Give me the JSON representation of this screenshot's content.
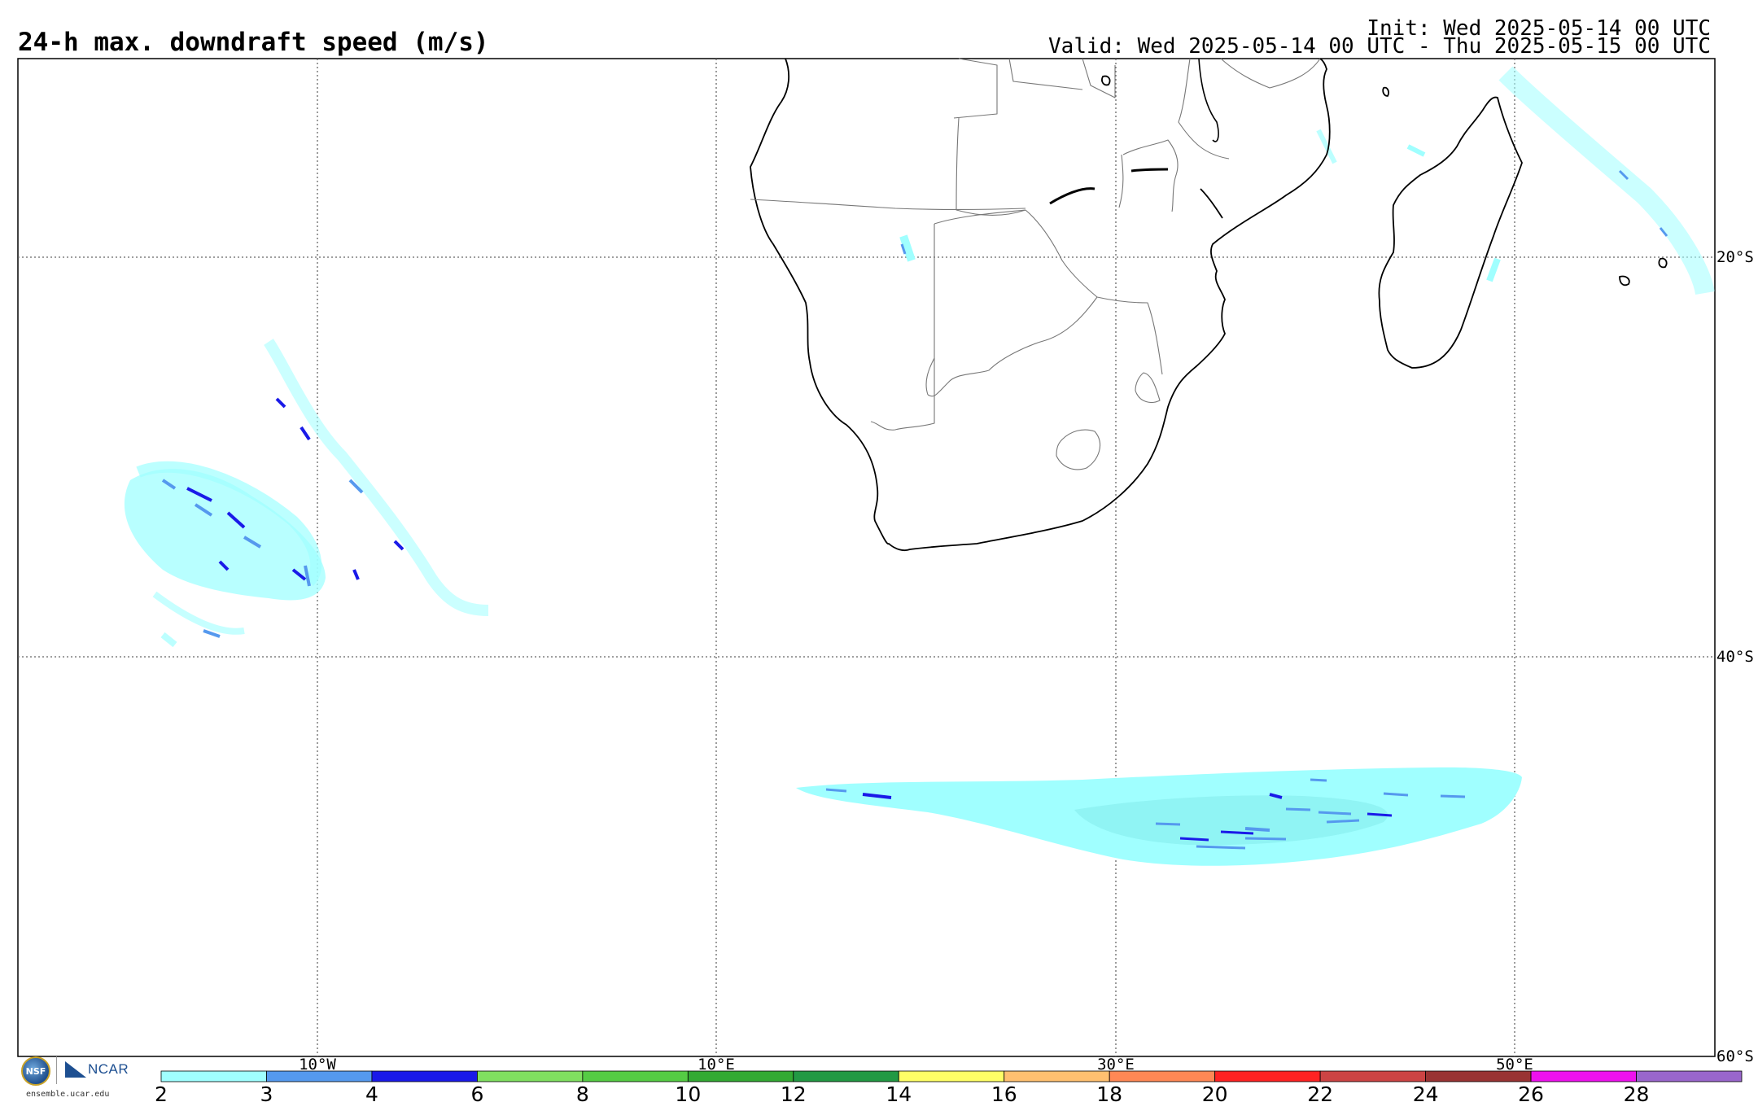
{
  "title": "24-h max. downdraft speed (m/s)",
  "init_line": "Init: Wed 2025-05-14 00 UTC",
  "valid_line": "Valid: Wed 2025-05-14 00 UTC - Thu 2025-05-15 00 UTC",
  "longitude_labels": [
    "10°W",
    "10°E",
    "30°E",
    "50°E"
  ],
  "latitude_labels": [
    "20°S",
    "40°S",
    "60°S"
  ],
  "colorbar": {
    "colors": [
      "#a0ffff",
      "#5599ee",
      "#1a1ae8",
      "#80e060",
      "#55cc44",
      "#33aa33",
      "#229944",
      "#ffff66",
      "#ffc070",
      "#ff8855",
      "#ff2222",
      "#cc4444",
      "#993333",
      "#ee11ee",
      "#9966cc"
    ],
    "tick_labels": [
      "2",
      "3",
      "4",
      "6",
      "8",
      "10",
      "12",
      "14",
      "16",
      "18",
      "20",
      "22",
      "24",
      "26",
      "28"
    ]
  },
  "logos": {
    "nsf_label": "NSF",
    "ncar_label": "NCAR",
    "site": "ensemble.ucar.edu"
  }
}
